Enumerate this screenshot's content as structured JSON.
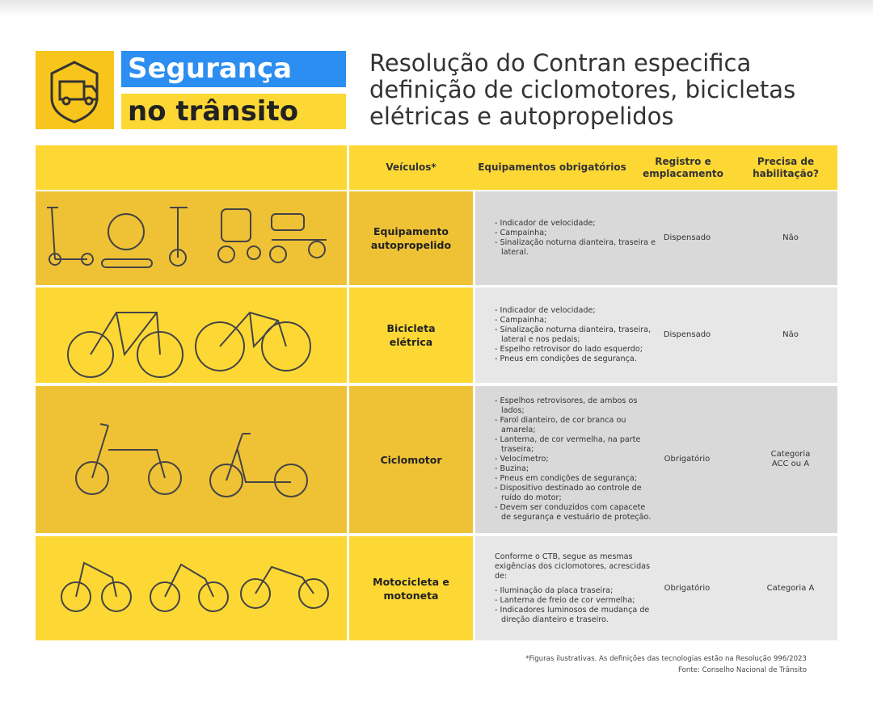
{
  "badge": {
    "line1": "Segurança",
    "line2": "no trânsito"
  },
  "title": [
    "Resolução do Contran especifica",
    "definição de ciclomotores, bicicletas",
    "elétricas e autopropelidos"
  ],
  "table": {
    "headers": [
      "Veículos*",
      "Equipamentos obrigatórios",
      "Registro e emplacamento",
      "Precisa de habilitação?"
    ],
    "rows": [
      {
        "vehicle": "Equipamento autopropelido",
        "equipment": [
          "- Indicador de velocidade;",
          "- Campainha;",
          "- Sinalização noturna dianteira, traseira e lateral."
        ],
        "registration": "Dispensado",
        "license": "Não"
      },
      {
        "vehicle": "Bicicleta elétrica",
        "equipment": [
          "- Indicador de velocidade;",
          "- Campainha;",
          "- Sinalização noturna dianteira, traseira, lateral e nos pedais;",
          "- Espelho retrovisor do lado esquerdo;",
          "- Pneus em condições de segurança."
        ],
        "registration": "Dispensado",
        "license": "Não"
      },
      {
        "vehicle": "Ciclomotor",
        "equipment": [
          "- Espelhos retrovisores, de ambos os lados;",
          "- Farol dianteiro, de cor branca ou amarela;",
          "- Lanterna, de cor vermelha, na parte traseira;",
          "- Velocímetro;",
          "- Buzina;",
          "- Pneus em condições de segurança;",
          "- Dispositivo destinado ao controle de ruído do motor;",
          "- Devem ser conduzidos com capacete de segurança e vestuário de proteção."
        ],
        "registration": "Obrigatório",
        "license": "Categoria ACC ou A"
      },
      {
        "vehicle": "Motocicleta e motoneta",
        "intro": "Conforme o CTB, segue as mesmas exigências dos ciclomotores, acrescidas de:",
        "equipment": [
          "- Iluminação da placa traseira;",
          "- Lanterna de freio de cor vermelha;",
          "- Indicadores luminosos de mudança de direção dianteiro e traseiro."
        ],
        "registration": "Obrigatório",
        "license": "Categoria A"
      }
    ]
  },
  "footnote": "*Figuras ilustrativas. As definições das tecnologias estão na Resolução 996/2023",
  "source": "Fonte: Conselho Nacional de Trânsito"
}
